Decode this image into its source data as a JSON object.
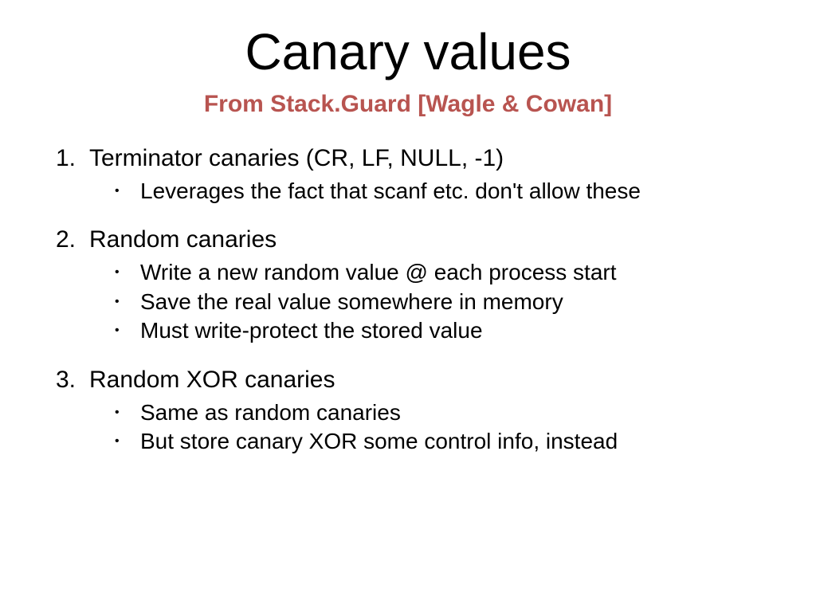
{
  "title": "Canary values",
  "subtitle_prefix": "From Stack.Guard ",
  "subtitle_bracket": "[Wagle & Cowan]",
  "colors": {
    "title": "#000000",
    "subtitle": "#b85450",
    "body": "#000000",
    "background": "#ffffff"
  },
  "typography": {
    "title_fontsize": 64,
    "subtitle_fontsize": 30,
    "item_fontsize": 30,
    "subitem_fontsize": 28,
    "font_family": "Arial"
  },
  "items": [
    {
      "number": "1.",
      "label": "Terminator canaries (CR, LF, NULL, -1)",
      "subs": [
        "Leverages the fact that scanf etc. don't allow these"
      ]
    },
    {
      "number": "2.",
      "label": "Random canaries",
      "subs": [
        "Write a new random value @ each process start",
        "Save the real value somewhere in memory",
        "Must write-protect the stored value"
      ]
    },
    {
      "number": "3.",
      "label": "Random XOR canaries",
      "subs": [
        "Same as random canaries",
        "But store canary XOR some control info, instead"
      ]
    }
  ]
}
